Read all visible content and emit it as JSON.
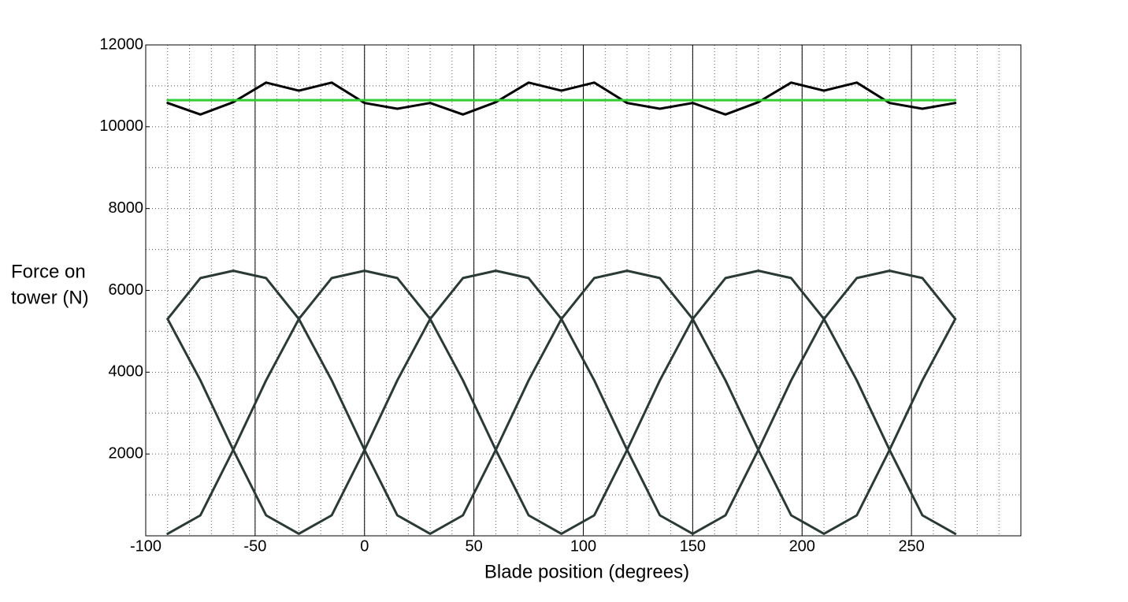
{
  "chart_data": {
    "type": "line",
    "xlabel": "Blade position (degrees)",
    "ylabel": [
      "Force on",
      "tower (N)"
    ],
    "xlim": [
      -100,
      300
    ],
    "ylim": [
      0,
      12000
    ],
    "xticks": [
      -100,
      -50,
      0,
      50,
      100,
      150,
      200,
      250
    ],
    "yticks": [
      2000,
      4000,
      6000,
      8000,
      10000,
      12000
    ],
    "minor_grid": {
      "x": 10,
      "y": 1000
    },
    "x": [
      -90,
      -75,
      -60,
      -45,
      -30,
      -15,
      0,
      15,
      30,
      45,
      60,
      75,
      90,
      105,
      120,
      135,
      150,
      165,
      180,
      195,
      210,
      225,
      240,
      255,
      270
    ],
    "series": [
      {
        "color": "#000000",
        "values": [
          10580,
          10300,
          10600,
          11080,
          10880,
          11080,
          10580,
          10440,
          10580,
          10300,
          10600,
          11080,
          10880,
          11080,
          10580,
          10440,
          10580,
          10300,
          10600,
          11080,
          10880,
          11080,
          10580,
          10440,
          10580
        ]
      },
      {
        "color": "#2b3a36",
        "values": [
          50,
          500,
          2100,
          3800,
          5300,
          6300,
          6480,
          6300,
          5300,
          3800,
          2100,
          500,
          50,
          500,
          2100,
          3800,
          5300,
          6300,
          6480,
          6300,
          5300,
          3800,
          2100,
          500,
          50
        ]
      },
      {
        "color": "#2b3a36",
        "values": [
          5300,
          6300,
          6480,
          6300,
          5300,
          3800,
          2100,
          500,
          50,
          500,
          2100,
          3800,
          5300,
          6300,
          6480,
          6300,
          5300,
          3800,
          2100,
          500,
          50,
          500,
          2100,
          3800,
          5300
        ]
      },
      {
        "color": "#2b3a36",
        "values": [
          5300,
          3800,
          2100,
          500,
          50,
          500,
          2100,
          3800,
          5300,
          6300,
          6480,
          6300,
          5300,
          3800,
          2100,
          500,
          50,
          500,
          2100,
          3800,
          5300,
          6300,
          6480,
          6300,
          5300
        ]
      },
      {
        "color": "#33cc33",
        "x": [
          -90,
          270
        ],
        "values": [
          10650,
          10650
        ]
      }
    ]
  }
}
